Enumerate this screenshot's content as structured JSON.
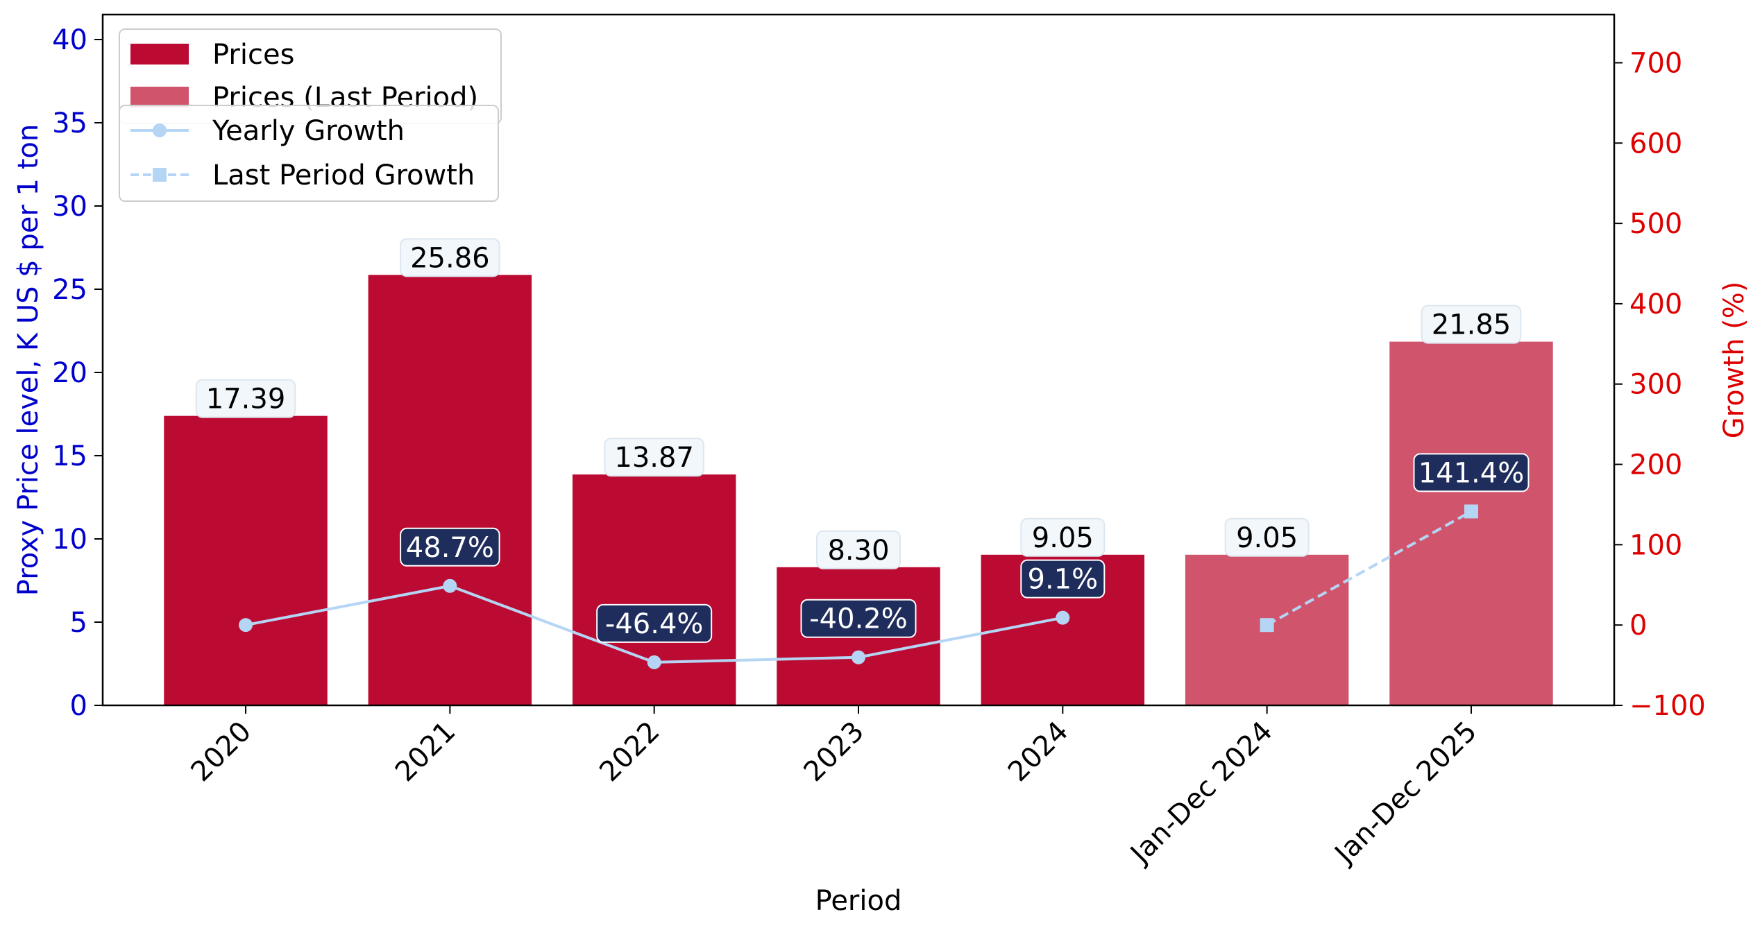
{
  "chart_data": {
    "type": "bar",
    "xlabel": "Period",
    "ylabel_left": "Proxy Price level, K US $ per 1 ton",
    "ylabel_right": "Growth (%)",
    "categories": [
      "2020",
      "2021",
      "2022",
      "2023",
      "2024",
      "Jan-Dec 2024",
      "Jan-Dec 2025"
    ],
    "ylim_left": [
      0,
      41.5
    ],
    "ylim_right": [
      -100,
      760
    ],
    "yticks_left": [
      0,
      5,
      10,
      15,
      20,
      25,
      30,
      35,
      40
    ],
    "yticks_right": [
      -100,
      0,
      100,
      200,
      300,
      400,
      500,
      600,
      700
    ],
    "ytick_labels_left": [
      "0",
      "5",
      "10",
      "15",
      "20",
      "25",
      "30",
      "35",
      "40"
    ],
    "ytick_labels_right": [
      "−100",
      "0",
      "100",
      "200",
      "300",
      "400",
      "500",
      "600",
      "700"
    ],
    "series": [
      {
        "name": "Prices",
        "kind": "bar",
        "color": "#bc0b32",
        "values": [
          17.39,
          25.86,
          13.87,
          8.3,
          9.05,
          null,
          null
        ],
        "labels": [
          "17.39",
          "25.86",
          "13.87",
          "8.30",
          "9.05",
          "",
          ""
        ]
      },
      {
        "name": "Prices (Last Period)",
        "kind": "bar",
        "color": "#d1546d",
        "values": [
          null,
          null,
          null,
          null,
          null,
          9.05,
          21.85
        ],
        "labels": [
          "",
          "",
          "",
          "",
          "",
          "9.05",
          "21.85"
        ]
      },
      {
        "name": "Yearly Growth",
        "kind": "line",
        "axis": "right",
        "color": "#b5d5f5",
        "marker": "circle",
        "values": [
          0,
          48.7,
          -46.4,
          -40.2,
          9.1,
          null,
          null
        ],
        "labels": [
          "",
          "48.7%",
          "-46.4%",
          "-40.2%",
          "9.1%",
          "",
          ""
        ]
      },
      {
        "name": "Last Period Growth",
        "kind": "line",
        "axis": "right",
        "color": "#b5d5f5",
        "marker": "square",
        "dash": "dashed",
        "values": [
          null,
          null,
          null,
          null,
          null,
          0,
          141.4
        ],
        "labels": [
          "",
          "",
          "",
          "",
          "",
          "",
          "141.4%"
        ]
      }
    ],
    "grid": false,
    "legend_placement": "top-left",
    "colors": {
      "left_axis": "#0000cc",
      "right_axis": "#dd0000",
      "growth_label_bg": "#1f2d5c",
      "price_label_bg": "#f2f7fb"
    }
  }
}
